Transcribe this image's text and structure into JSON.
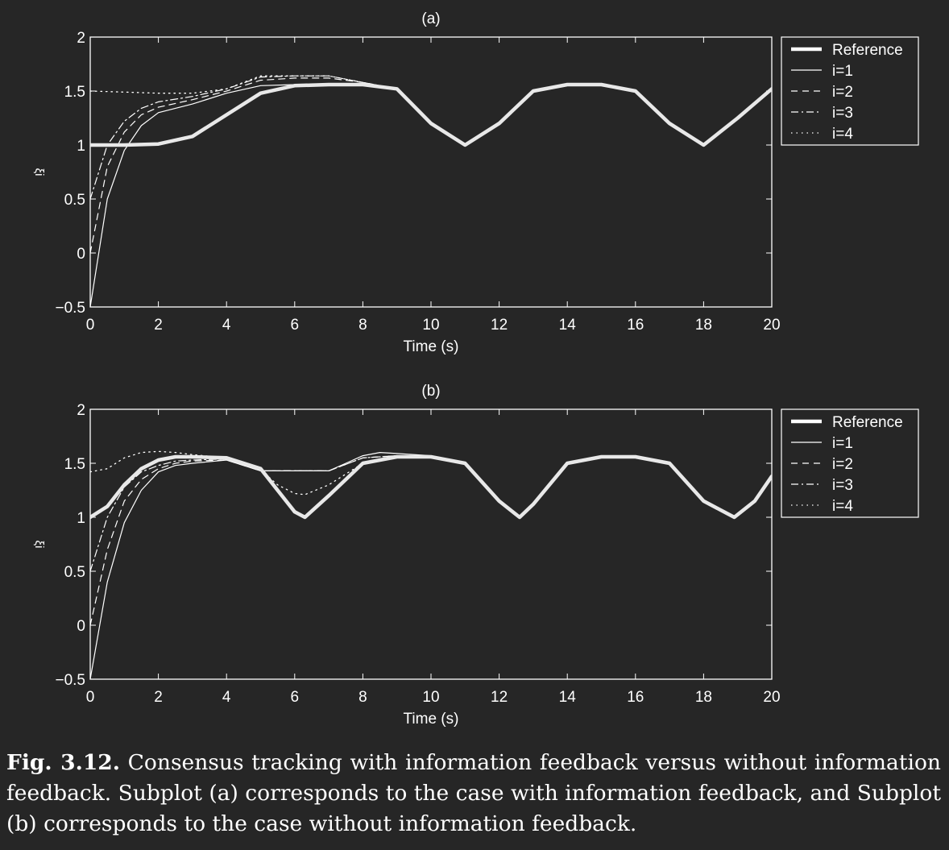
{
  "figure": {
    "background": "#262626",
    "foreground": "#ffffff",
    "reference_color": "#e8e8e8"
  },
  "caption": {
    "label": "Fig. 3.12.",
    "text": "Consensus tracking with information feedback versus without information feedback. Subplot (a) corresponds to the case with information feedback, and Subplot (b) corresponds to the case without information feedback."
  },
  "chart_data": [
    {
      "type": "line",
      "title": "(a)",
      "xlabel": "Time (s)",
      "ylabel": "ξi",
      "xlim": [
        0,
        20
      ],
      "ylim": [
        -0.5,
        2
      ],
      "xticks": [
        0,
        2,
        4,
        6,
        8,
        10,
        12,
        14,
        16,
        18,
        20
      ],
      "yticks": [
        -0.5,
        0,
        0.5,
        1,
        1.5,
        2
      ],
      "ytick_labels": [
        "−0.5",
        "0",
        "0.5",
        "1",
        "1.5",
        "2"
      ],
      "grid": false,
      "legend": "outside-top-right",
      "series": [
        {
          "name": "Reference",
          "style": "thick",
          "x": [
            0,
            1,
            2,
            3,
            4,
            5,
            6,
            7,
            8,
            9,
            10,
            11,
            12,
            13,
            14,
            15,
            16,
            17,
            18,
            19,
            20
          ],
          "y": [
            1.0,
            1.0,
            1.01,
            1.08,
            1.28,
            1.48,
            1.55,
            1.56,
            1.56,
            1.52,
            1.2,
            1.0,
            1.2,
            1.5,
            1.56,
            1.56,
            1.5,
            1.2,
            1.0,
            1.25,
            1.52
          ]
        },
        {
          "name": "i=1",
          "style": "solid",
          "x": [
            0,
            0.5,
            1,
            1.5,
            2,
            3,
            4,
            5,
            6,
            7,
            8,
            9,
            10,
            11,
            12,
            13,
            14,
            15,
            16,
            17,
            18,
            19,
            20
          ],
          "y": [
            -0.5,
            0.5,
            0.95,
            1.18,
            1.3,
            1.38,
            1.48,
            1.55,
            1.56,
            1.56,
            1.56,
            1.52,
            1.2,
            1.0,
            1.2,
            1.5,
            1.56,
            1.56,
            1.5,
            1.2,
            1.0,
            1.25,
            1.52
          ]
        },
        {
          "name": "i=2",
          "style": "dashed",
          "x": [
            0,
            0.5,
            1,
            1.5,
            2,
            3,
            4,
            5,
            6,
            7,
            8,
            9,
            10,
            11,
            12,
            13,
            14,
            15,
            16,
            17,
            18,
            19,
            20
          ],
          "y": [
            0.0,
            0.8,
            1.12,
            1.28,
            1.35,
            1.42,
            1.5,
            1.6,
            1.62,
            1.62,
            1.58,
            1.52,
            1.2,
            1.0,
            1.2,
            1.5,
            1.56,
            1.56,
            1.5,
            1.2,
            1.0,
            1.25,
            1.52
          ]
        },
        {
          "name": "i=3",
          "style": "dashdot",
          "x": [
            0,
            0.5,
            1,
            1.5,
            2,
            3,
            4,
            5,
            6,
            7,
            8,
            9,
            10,
            11,
            12,
            13,
            14,
            15,
            16,
            17,
            18,
            19,
            20
          ],
          "y": [
            0.5,
            1.0,
            1.22,
            1.34,
            1.4,
            1.45,
            1.52,
            1.63,
            1.64,
            1.64,
            1.58,
            1.52,
            1.2,
            1.0,
            1.2,
            1.5,
            1.56,
            1.56,
            1.5,
            1.2,
            1.0,
            1.25,
            1.52
          ]
        },
        {
          "name": "i=4",
          "style": "dotted",
          "x": [
            0,
            1,
            2,
            3,
            4,
            5,
            6,
            7,
            8,
            9,
            10,
            11,
            12,
            13,
            14,
            15,
            16,
            17,
            18,
            19,
            20
          ],
          "y": [
            1.5,
            1.49,
            1.48,
            1.48,
            1.52,
            1.64,
            1.64,
            1.64,
            1.58,
            1.52,
            1.2,
            1.0,
            1.2,
            1.5,
            1.56,
            1.56,
            1.5,
            1.2,
            1.0,
            1.25,
            1.52
          ]
        }
      ]
    },
    {
      "type": "line",
      "title": "(b)",
      "xlabel": "Time (s)",
      "ylabel": "ξi",
      "xlim": [
        0,
        20
      ],
      "ylim": [
        -0.5,
        2
      ],
      "xticks": [
        0,
        2,
        4,
        6,
        8,
        10,
        12,
        14,
        16,
        18,
        20
      ],
      "yticks": [
        -0.5,
        0,
        0.5,
        1,
        1.5,
        2
      ],
      "ytick_labels": [
        "−0.5",
        "0",
        "0.5",
        "1",
        "1.5",
        "2"
      ],
      "grid": false,
      "legend": "outside-top-right",
      "series": [
        {
          "name": "Reference",
          "style": "thick",
          "x": [
            0,
            0.5,
            1,
            1.5,
            2,
            2.5,
            3,
            4,
            5,
            5.5,
            6,
            6.3,
            7,
            8,
            9,
            10,
            11,
            12,
            12.6,
            13,
            14,
            15,
            16,
            17,
            18,
            18.9,
            19.5,
            20
          ],
          "y": [
            1.0,
            1.1,
            1.3,
            1.45,
            1.53,
            1.56,
            1.56,
            1.55,
            1.45,
            1.25,
            1.05,
            1.0,
            1.2,
            1.5,
            1.56,
            1.56,
            1.5,
            1.15,
            1.0,
            1.12,
            1.5,
            1.56,
            1.56,
            1.5,
            1.15,
            1.0,
            1.15,
            1.38
          ]
        },
        {
          "name": "i=1",
          "style": "solid",
          "x": [
            0,
            0.5,
            1,
            1.5,
            2,
            2.5,
            3,
            4,
            5,
            6,
            7,
            7.5,
            8,
            8.5,
            9,
            10,
            11,
            12,
            12.6,
            13,
            14,
            15,
            16,
            17,
            18,
            18.9,
            19.5,
            20
          ],
          "y": [
            -0.5,
            0.4,
            0.95,
            1.25,
            1.42,
            1.48,
            1.5,
            1.53,
            1.43,
            1.43,
            1.43,
            1.5,
            1.57,
            1.6,
            1.59,
            1.57,
            1.5,
            1.15,
            1.0,
            1.12,
            1.5,
            1.56,
            1.56,
            1.5,
            1.15,
            1.0,
            1.15,
            1.38
          ]
        },
        {
          "name": "i=2",
          "style": "dashed",
          "x": [
            0,
            0.5,
            1,
            1.5,
            2,
            2.5,
            3,
            4,
            5,
            6,
            7,
            8,
            9,
            10,
            11,
            12,
            12.6,
            13,
            14,
            15,
            16,
            17,
            18,
            18.9,
            19.5,
            20
          ],
          "y": [
            0.0,
            0.7,
            1.15,
            1.35,
            1.45,
            1.5,
            1.52,
            1.53,
            1.43,
            1.43,
            1.43,
            1.55,
            1.57,
            1.57,
            1.5,
            1.15,
            1.0,
            1.12,
            1.5,
            1.56,
            1.56,
            1.5,
            1.15,
            1.0,
            1.15,
            1.38
          ]
        },
        {
          "name": "i=3",
          "style": "dashdot",
          "x": [
            0,
            0.5,
            1,
            1.5,
            2,
            2.5,
            3,
            4,
            5,
            6,
            7,
            8,
            9,
            10,
            11,
            12,
            12.6,
            13,
            14,
            15,
            16,
            17,
            18,
            18.9,
            19.5,
            20
          ],
          "y": [
            0.5,
            1.0,
            1.28,
            1.42,
            1.48,
            1.52,
            1.53,
            1.54,
            1.43,
            1.43,
            1.43,
            1.55,
            1.57,
            1.57,
            1.5,
            1.15,
            1.0,
            1.12,
            1.5,
            1.56,
            1.56,
            1.5,
            1.15,
            1.0,
            1.15,
            1.38
          ]
        },
        {
          "name": "i=4",
          "style": "dotted",
          "x": [
            0,
            0.5,
            1,
            1.5,
            2,
            2.5,
            3,
            4,
            5,
            5.5,
            6,
            6.3,
            7,
            8,
            9,
            10,
            11,
            12,
            12.6,
            13,
            14,
            15,
            16,
            17,
            18,
            18.9,
            19.5,
            20
          ],
          "y": [
            1.42,
            1.45,
            1.55,
            1.6,
            1.61,
            1.6,
            1.58,
            1.55,
            1.44,
            1.3,
            1.22,
            1.21,
            1.3,
            1.5,
            1.56,
            1.56,
            1.5,
            1.15,
            1.0,
            1.12,
            1.5,
            1.56,
            1.56,
            1.5,
            1.15,
            1.0,
            1.15,
            1.38
          ]
        }
      ]
    }
  ]
}
